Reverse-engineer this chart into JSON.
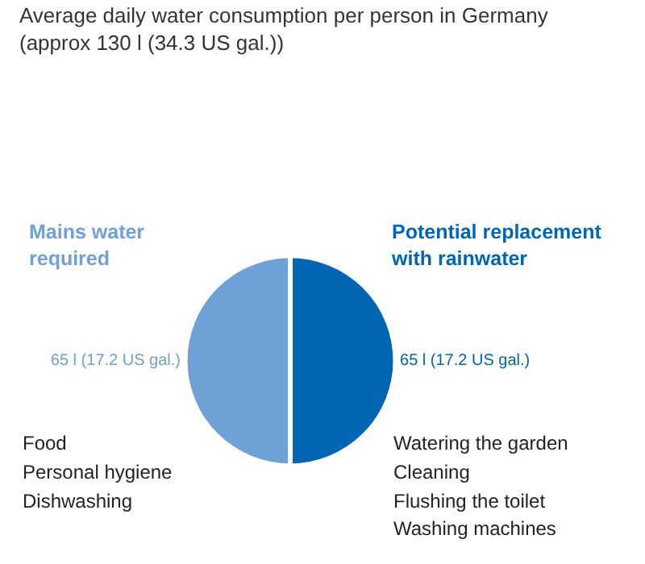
{
  "chart_data": {
    "type": "pie",
    "title": "Average daily water consumption per person in Germany (approx 130 l (34.3 US gal.))",
    "categories": [
      "Mains water required",
      "Potential replacement with rainwater"
    ],
    "values": [
      65,
      65
    ],
    "colors": [
      "#6fa0d6",
      "#0066b3"
    ],
    "value_labels": [
      "65 l (17.2 US gal.)",
      "65 l (17.2 US gal.)"
    ],
    "annotations": [
      "Food",
      "Personal hygiene",
      "Dishwashing",
      "Watering the garden",
      "Cleaning",
      "Flushing the toilet",
      "Washing machines"
    ],
    "legend": false
  }
}
